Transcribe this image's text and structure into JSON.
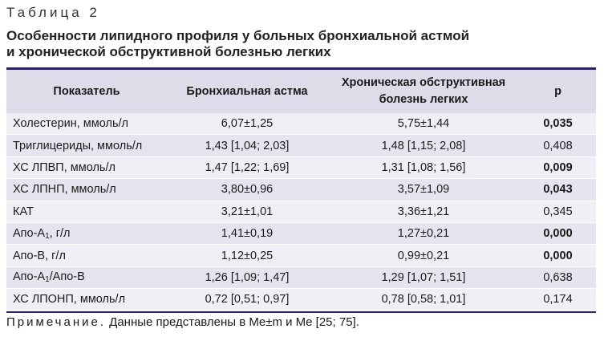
{
  "table_label": "Таблица 2",
  "title_line1": "Особенности липидного профиля у больных бронхиальной астмой",
  "title_line2": "и хронической обструктивной болезнью легких",
  "headers": {
    "col1": "Показатель",
    "col2": "Бронхиальная астма",
    "col3_line1": "Хроническая обструктивная",
    "col3_line2": "болезнь легких",
    "col4": "p"
  },
  "rows": [
    {
      "name": "Холестерин, ммоль/л",
      "asthma": "6,07±1,25",
      "copd": "5,75±1,44",
      "p": "0,035",
      "p_bold": true
    },
    {
      "name": "Триглицериды, ммоль/л",
      "asthma": "1,43 [1,04; 2,03]",
      "copd": "1,48 [1,15; 2,08]",
      "p": "0,408",
      "p_bold": false
    },
    {
      "name": "ХС ЛПВП, ммоль/л",
      "asthma": "1,47 [1,22; 1,69]",
      "copd": "1,31 [1,08; 1,56]",
      "p": "0,009",
      "p_bold": true
    },
    {
      "name": "ХС ЛПНП, ммоль/л",
      "asthma": "3,80±0,96",
      "copd": "3,57±1,09",
      "p": "0,043",
      "p_bold": true
    },
    {
      "name": "КАТ",
      "asthma": "3,21±1,01",
      "copd": "3,36±1,21",
      "p": "0,345",
      "p_bold": false
    },
    {
      "name_main": "Апо-А",
      "name_sub": "1",
      "name_tail": ", г/л",
      "asthma": "1,41±0,19",
      "copd": "1,27±0,21",
      "p": "0,000",
      "p_bold": true
    },
    {
      "name": "Апо-В, г/л",
      "asthma": "1,12±0,25",
      "copd": "0,99±0,21",
      "p": "0,000",
      "p_bold": true
    },
    {
      "name_main": "Апо-А",
      "name_sub": "1",
      "name_tail": "/Апо-В",
      "asthma": "1,26 [1,09; 1,47]",
      "copd": "1,29 [1,07; 1,51]",
      "p": "0,638",
      "p_bold": false
    },
    {
      "name": "ХС ЛПОНП, ммоль/л",
      "asthma": "0,72 [0,51; 0,97]",
      "copd": "0,78 [0,58; 1,01]",
      "p": "0,174",
      "p_bold": false
    }
  ],
  "note": {
    "prefix": "Примечание.",
    "text": " Данные представлены в Me±m и Me [25; 75]."
  }
}
